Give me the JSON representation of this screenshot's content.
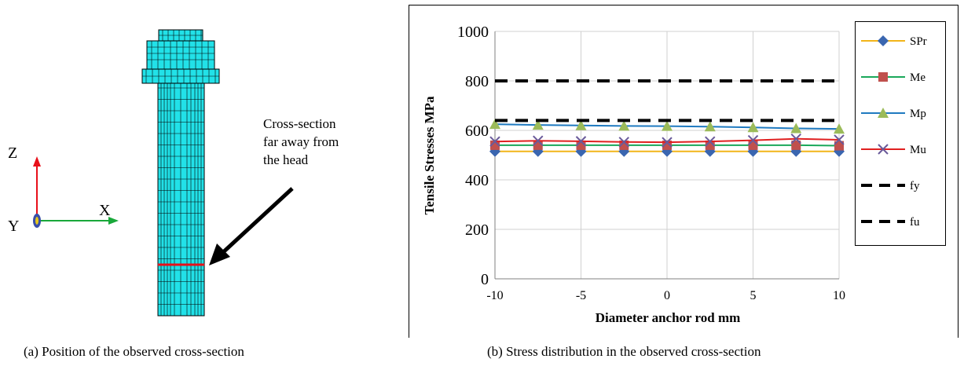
{
  "left_panel": {
    "caption": "(a) Position of the observed cross-section",
    "annotation_lines": [
      "Cross-section",
      "far away from",
      "the head"
    ],
    "axes": {
      "z_label": "Z",
      "x_label": "X",
      "y_label": "Y",
      "z_color": "#e8101a",
      "x_color": "#19a83a",
      "y_color": "#3a4fa8"
    },
    "mesh_color": "#22e1e8",
    "mesh_line_color": "#000000",
    "section_line_color": "#e8101a"
  },
  "right_panel": {
    "caption": "(b) Stress distribution in the observed cross-section"
  },
  "chart_data": {
    "type": "line",
    "title": "",
    "xlabel": "Diameter anchor rod mm",
    "ylabel": "Tensile Stresses MPa",
    "xlim": [
      -10,
      10
    ],
    "ylim": [
      0,
      1000
    ],
    "xticks": [
      -10,
      -5,
      0,
      5,
      10
    ],
    "yticks": [
      0,
      200,
      400,
      600,
      800,
      1000
    ],
    "grid": true,
    "legend_position": "right",
    "x": [
      -10,
      -7.5,
      -5,
      -2.5,
      0,
      2.5,
      5,
      7.5,
      10
    ],
    "series": [
      {
        "name": "SPr",
        "color": "#f2b51a",
        "marker": "diamond",
        "marker_color": "#3a66b0",
        "dash": false,
        "values": [
          515,
          515,
          515,
          515,
          515,
          515,
          515,
          515,
          515
        ]
      },
      {
        "name": "Me",
        "color": "#1aa85a",
        "marker": "square",
        "marker_color": "#c0504d",
        "dash": false,
        "values": [
          540,
          540,
          540,
          540,
          540,
          540,
          540,
          540,
          538
        ]
      },
      {
        "name": "Mp",
        "color": "#1f7ac0",
        "marker": "triangle",
        "marker_color": "#9bbb59",
        "dash": false,
        "values": [
          625,
          622,
          620,
          618,
          617,
          615,
          612,
          608,
          606
        ]
      },
      {
        "name": "Mu",
        "color": "#e02020",
        "marker": "x",
        "marker_color": "#6a5a9a",
        "dash": false,
        "values": [
          555,
          558,
          556,
          553,
          552,
          555,
          560,
          566,
          562
        ]
      },
      {
        "name": "fy",
        "color": "#000000",
        "marker": "none",
        "dash": true,
        "values": [
          640,
          640,
          640,
          640,
          640,
          640,
          640,
          640,
          640
        ]
      },
      {
        "name": "fu",
        "color": "#000000",
        "marker": "none",
        "dash": true,
        "values": [
          800,
          800,
          800,
          800,
          800,
          800,
          800,
          800,
          800
        ]
      }
    ]
  }
}
